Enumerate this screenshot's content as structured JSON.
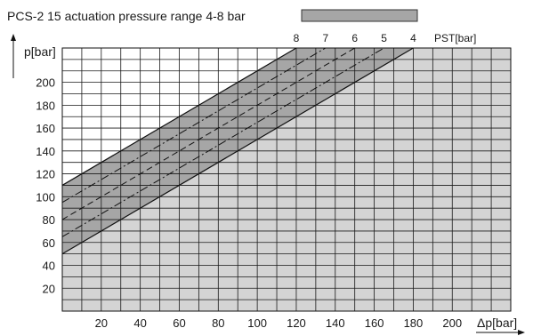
{
  "chart_data": {
    "type": "area",
    "title": "PCS-2 15 actuation pressure range 4-8 bar",
    "legend": {
      "placement": "top",
      "swatch_color": "#a6a6a6"
    },
    "xlabel": "Δp[bar]",
    "ylabel": "p[bar]",
    "pst_label": "PST[bar]",
    "xlim": [
      0,
      230
    ],
    "ylim": [
      0,
      230
    ],
    "grid": true,
    "x_ticks": [
      20,
      40,
      60,
      80,
      100,
      120,
      140,
      160,
      180,
      200
    ],
    "x_tick_labels": [
      "20",
      "40",
      "60",
      "80",
      "100",
      "120",
      "140",
      "160",
      "180",
      "200"
    ],
    "y_ticks": [
      20,
      40,
      60,
      80,
      100,
      120,
      140,
      160,
      180,
      200
    ],
    "y_tick_labels": [
      "20",
      "40",
      "60",
      "80",
      "100",
      "120",
      "140",
      "160",
      "180",
      "200"
    ],
    "band": {
      "color": "#a6a6a6",
      "upper": {
        "x": [
          0,
          120
        ],
        "y": [
          110,
          230
        ]
      },
      "lower": {
        "x": [
          0,
          180
        ],
        "y": [
          50,
          230
        ]
      }
    },
    "region_below_color": "#d4d4d4",
    "pst_lines": [
      {
        "label": "8",
        "pst": 8,
        "x": [
          0,
          120
        ],
        "y": [
          110,
          230
        ],
        "style": "solid"
      },
      {
        "label": "7",
        "pst": 7,
        "x": [
          0,
          135
        ],
        "y": [
          95,
          230
        ],
        "style": "dashdot"
      },
      {
        "label": "6",
        "pst": 6,
        "x": [
          0,
          150
        ],
        "y": [
          80,
          230
        ],
        "style": "dashed"
      },
      {
        "label": "5",
        "pst": 5,
        "x": [
          0,
          165
        ],
        "y": [
          65,
          230
        ],
        "style": "dashdot"
      },
      {
        "label": "4",
        "pst": 4,
        "x": [
          0,
          180
        ],
        "y": [
          50,
          230
        ],
        "style": "solid"
      }
    ]
  }
}
